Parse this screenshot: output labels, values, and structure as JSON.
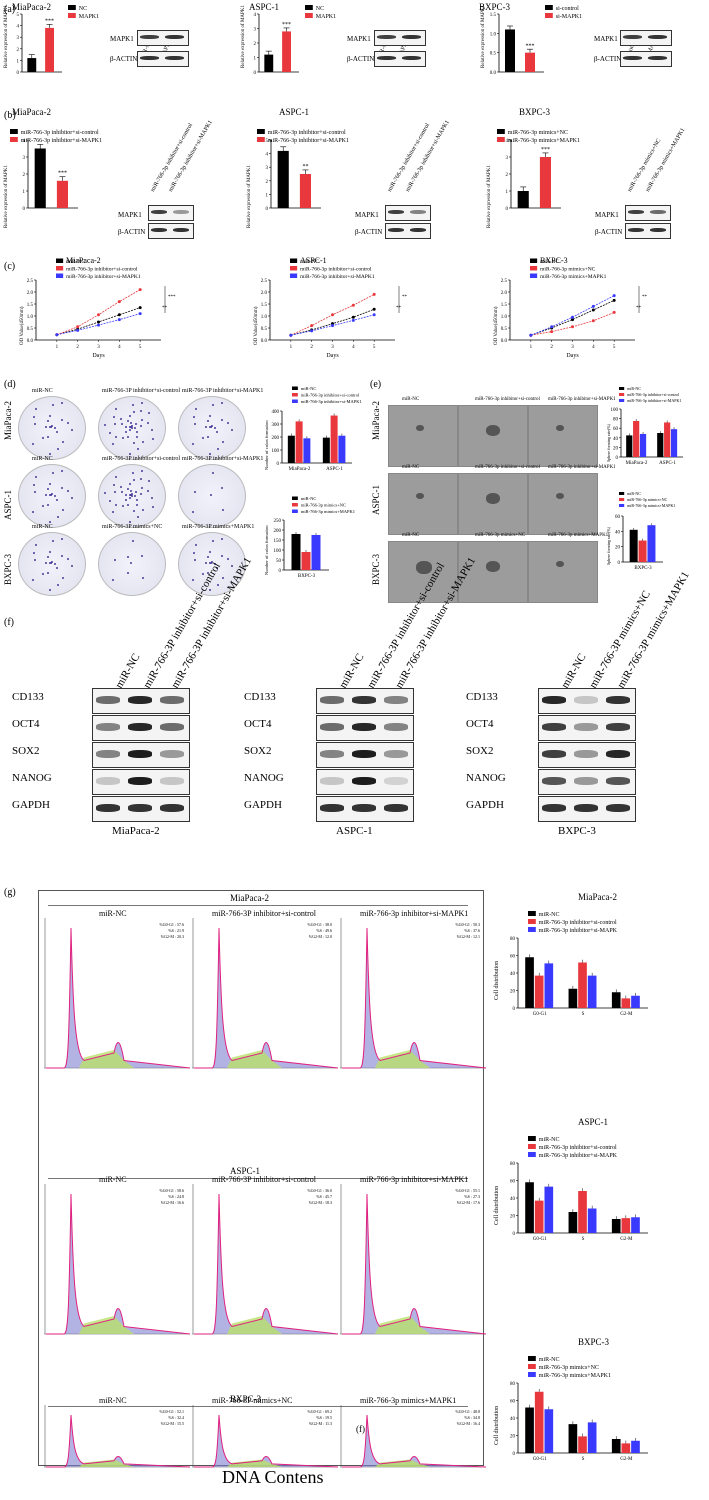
{
  "panel_labels": {
    "a": "(a)",
    "b": "(b)",
    "c": "(c)",
    "d": "(d)",
    "e": "(e)",
    "f": "(f)",
    "g": "(g)"
  },
  "common": {
    "ylabel_expr": "Relative expression of MAPK1",
    "mapk1": "MAPK1",
    "bactin": "β-ACTIN",
    "days": "Days",
    "od": "OD Value(450mm)",
    "colony_ylabel": "Number of colon formation",
    "sphere_ylabel": "Sphere forming rate(%)",
    "cell_dist": "Cell distribution",
    "dna": "DNA Contens",
    "stray_f": "(f)"
  },
  "row_a": [
    {
      "title": "MiaPaca-2",
      "legend": [
        "NC",
        "MAPK1"
      ],
      "lanes": [
        "miR-NC",
        "MAPK1"
      ],
      "chart_data": {
        "type": "bar",
        "categories": [
          "NC",
          "MAPK1"
        ],
        "values": [
          1.2,
          3.8
        ],
        "ylim": [
          0,
          5
        ],
        "ticks": [
          "0",
          "1",
          "2",
          "3",
          "4",
          "5"
        ],
        "sig": "***"
      }
    },
    {
      "title": "ASPC-1",
      "legend": [
        "NC",
        "MAPK1"
      ],
      "lanes": [
        "miR-NC",
        "MAPK1"
      ],
      "chart_data": {
        "type": "bar",
        "categories": [
          "NC",
          "MAPK1"
        ],
        "values": [
          1.2,
          2.8
        ],
        "ylim": [
          0,
          4
        ],
        "ticks": [
          "0",
          "1",
          "2",
          "3",
          "4"
        ],
        "sig": "***"
      }
    },
    {
      "title": "BXPC-3",
      "legend": [
        "si-control",
        "si-MAPK1"
      ],
      "lanes": [
        "si-control",
        "si-MAPK1"
      ],
      "chart_data": {
        "type": "bar",
        "categories": [
          "si-control",
          "si-MAPK1"
        ],
        "values": [
          1.1,
          0.5
        ],
        "ylim": [
          0,
          1.5
        ],
        "ticks": [
          "0.0",
          "0.5",
          "1.0",
          "1.5"
        ],
        "sig": "***"
      }
    }
  ],
  "row_b": [
    {
      "title": "MiaPaca-2",
      "legend": [
        "miR-766-3p inhibitor+si-control",
        "miR-766-3p inhibitor+si-MAPK1"
      ],
      "lanes": [
        "miR-766-3p inhibitor+si-control",
        "miR-766-3p inhibitor+si-MAPK1"
      ],
      "chart_data": {
        "type": "bar",
        "categories": [
          "si-control",
          "si-MAPK1"
        ],
        "values": [
          3.5,
          1.6
        ],
        "ylim": [
          0,
          4
        ],
        "ticks": [
          "0",
          "1",
          "2",
          "3",
          "4"
        ],
        "sig": "***"
      }
    },
    {
      "title": "ASPC-1",
      "legend": [
        "miR-766-3p inhibitor+si-control",
        "miR-766-3p inhibitor+si-MAPK1"
      ],
      "lanes": [
        "miR-766-3p inhibitor+si-control",
        "miR-766-3p inhibitor+si-MAPK1"
      ],
      "chart_data": {
        "type": "bar",
        "categories": [
          "si-control",
          "si-MAPK1"
        ],
        "values": [
          4.2,
          2.5
        ],
        "ylim": [
          0,
          5
        ],
        "ticks": [
          "0",
          "1",
          "2",
          "3",
          "4",
          "5"
        ],
        "sig": "**"
      }
    },
    {
      "title": "BXPC-3",
      "legend": [
        "miR-766-3p mimics+NC",
        "miR-766-3p mimics+MAPK1"
      ],
      "lanes": [
        "miR-766-3p mimics+NC",
        "miR-766-3p mimics+MAPK1"
      ],
      "chart_data": {
        "type": "bar",
        "categories": [
          "mimics+NC",
          "mimics+MAPK1"
        ],
        "values": [
          1.0,
          3.0
        ],
        "ylim": [
          0,
          4
        ],
        "ticks": [
          "0",
          "1",
          "2",
          "3",
          "4"
        ],
        "sig": "***"
      }
    }
  ],
  "row_c": [
    {
      "title": "MiaPaca-2",
      "legend": [
        "miR-NC",
        "miR-766-3p inhibitor+si-control",
        "miR-766-3p inhibitor+si-MAPK1"
      ],
      "chart_data": {
        "type": "line",
        "x": [
          1,
          2,
          3,
          4,
          5
        ],
        "ylim": [
          0,
          2.5
        ],
        "yticks": [
          "0.0",
          "0.5",
          "1.0",
          "1.5",
          "2.0",
          "2.5"
        ],
        "sig": [
          "**",
          "***"
        ],
        "series": [
          {
            "name": "miR-NC",
            "values": [
              0.22,
              0.45,
              0.75,
              1.05,
              1.35
            ]
          },
          {
            "name": "miR-766-3p inhibitor+si-control",
            "values": [
              0.22,
              0.55,
              1.05,
              1.6,
              2.1
            ]
          },
          {
            "name": "miR-766-3p inhibitor+si-MAPK1",
            "values": [
              0.22,
              0.4,
              0.62,
              0.85,
              1.1
            ]
          }
        ]
      }
    },
    {
      "title": "ASPC-1",
      "legend": [
        "miR-NC",
        "miR-766-3p inhibitor+si-control",
        "miR-766-3p inhibitor+si-MAPK1"
      ],
      "chart_data": {
        "type": "line",
        "x": [
          1,
          2,
          3,
          4,
          5
        ],
        "ylim": [
          0,
          2.5
        ],
        "yticks": [
          "0.0",
          "0.5",
          "1.0",
          "1.5",
          "2.0",
          "2.5"
        ],
        "sig": [
          "**",
          "**"
        ],
        "series": [
          {
            "name": "miR-NC",
            "values": [
              0.2,
              0.42,
              0.68,
              0.95,
              1.28
            ]
          },
          {
            "name": "miR-766-3p inhibitor+si-control",
            "values": [
              0.2,
              0.6,
              1.05,
              1.45,
              1.9
            ]
          },
          {
            "name": "miR-766-3p inhibitor+si-MAPK1",
            "values": [
              0.2,
              0.38,
              0.6,
              0.82,
              1.05
            ]
          }
        ]
      }
    },
    {
      "title": "BXPC-3",
      "legend": [
        "miR-NC",
        "miR-766-3p mimics+NC",
        "miR-766-3p mimics+MAPK1"
      ],
      "chart_data": {
        "type": "line",
        "x": [
          1,
          2,
          3,
          4,
          5
        ],
        "ylim": [
          0,
          2.5
        ],
        "yticks": [
          "0.0",
          "0.5",
          "1.0",
          "1.5",
          "2.0",
          "2.5"
        ],
        "sig": [
          "**",
          "**"
        ],
        "series": [
          {
            "name": "miR-NC",
            "values": [
              0.2,
              0.5,
              0.85,
              1.25,
              1.65
            ]
          },
          {
            "name": "miR-766-3p mimics+NC",
            "values": [
              0.2,
              0.35,
              0.55,
              0.8,
              1.15
            ]
          },
          {
            "name": "miR-766-3p mimics+MAPK1",
            "values": [
              0.2,
              0.55,
              0.95,
              1.4,
              1.85
            ]
          }
        ]
      }
    }
  ],
  "row_d": {
    "col_labels": [
      [
        "miR-NC",
        "miR-766-3P inhibitor+si-control",
        "miR-766-3P inhibitor+si-MAPK1"
      ],
      [
        "miR-NC",
        "miR-766-3P inhibitor+si-control",
        "miR-766-3P inhibitor+si-MAPK1"
      ],
      [
        "miR-NC",
        "miR-766-3P mimics+NC",
        "miR-766-3P mimics+MAPK1"
      ]
    ],
    "row_labels": [
      "MiaPaca-2",
      "ASPC-1",
      "BXPC-3"
    ],
    "chart1": {
      "legend": [
        "miR-NC",
        "miR-766-3p inhibitor+si-control",
        "miR-766-3p inhibitor+si-MAPK1"
      ],
      "chart_data": {
        "type": "bar",
        "categories": [
          "MiaPaca-2",
          "ASPC-1"
        ],
        "ylim": [
          0,
          400
        ],
        "yticks": [
          "0",
          "100",
          "200",
          "300",
          "400"
        ],
        "series": [
          {
            "name": "miR-NC",
            "values": [
              210,
              195
            ]
          },
          {
            "name": "miR-766-3p inhibitor+si-control",
            "values": [
              320,
              365
            ]
          },
          {
            "name": "miR-766-3p inhibitor+si-MAPK1",
            "values": [
              190,
              210
            ]
          }
        ]
      }
    },
    "chart2": {
      "legend": [
        "miR-NC",
        "miR-766-3p mimics+NC",
        "miR-766-3p mimics+MAPK1"
      ],
      "chart_data": {
        "type": "bar",
        "categories": [
          "BXPC-3"
        ],
        "ylim": [
          0,
          250
        ],
        "yticks": [
          "0",
          "50",
          "100",
          "150",
          "200",
          "250"
        ],
        "series": [
          {
            "name": "miR-NC",
            "values": [
              180
            ]
          },
          {
            "name": "miR-766-3p mimics+NC",
            "values": [
              90
            ]
          },
          {
            "name": "miR-766-3p mimics+MAPK1",
            "values": [
              175
            ]
          }
        ]
      }
    }
  },
  "row_e": {
    "col_labels": [
      [
        "miR-NC",
        "miR-766-3p inhibitor+si-control",
        "miR-766-3p inhibitor+si-MAPK1"
      ],
      [
        "miR-NC",
        "miR-766-3p inhibitor+si-control",
        "miR-766-3p inhibitor+si-MAPK1"
      ],
      [
        "miR-NC",
        "miR-766-3p mimics+NC",
        "miR-766-3p mimics+MAPK1"
      ]
    ],
    "row_labels": [
      "MiaPaca-2",
      "ASPC-1",
      "BXPC-3"
    ],
    "chart1": {
      "legend": [
        "miR-NC",
        "miR-766-3p inhibitor+si-control",
        "miR-766-3p inhibitor+si-MAPK1"
      ],
      "chart_data": {
        "type": "bar",
        "categories": [
          "MiaPaca-2",
          "ASPC-1"
        ],
        "ylim": [
          0,
          100
        ],
        "yticks": [
          "0",
          "20",
          "40",
          "60",
          "80",
          "100"
        ],
        "series": [
          {
            "name": "miR-NC",
            "values": [
              45,
              50
            ]
          },
          {
            "name": "miR-766-3p inhibitor+si-control",
            "values": [
              75,
              72
            ]
          },
          {
            "name": "miR-766-3p inhibitor+si-MAPK1",
            "values": [
              48,
              58
            ]
          }
        ]
      }
    },
    "chart2": {
      "legend": [
        "miR-NC",
        "miR-766-3p mimics+NC",
        "miR-766-3p mimics+MAPK1"
      ],
      "chart_data": {
        "type": "bar",
        "categories": [
          "BXPC-3"
        ],
        "ylim": [
          0,
          60
        ],
        "yticks": [
          "0",
          "20",
          "40",
          "60"
        ],
        "series": [
          {
            "name": "miR-NC",
            "values": [
              42
            ]
          },
          {
            "name": "miR-766-3p mimics+NC",
            "values": [
              28
            ]
          },
          {
            "name": "miR-766-3p mimics+MAPK1",
            "values": [
              48
            ]
          }
        ]
      }
    }
  },
  "row_f": {
    "proteins": [
      "CD133",
      "OCT4",
      "SOX2",
      "NANOG",
      "GAPDH"
    ],
    "groups": [
      {
        "cell": "MiaPaca-2",
        "lanes": [
          "miR-NC",
          "miR-766-3P inhibitor+si-control",
          "miR-766-3P inhibitor+si-MAPK1"
        ],
        "intensity": [
          [
            0.6,
            0.9,
            0.6
          ],
          [
            0.5,
            0.9,
            0.6
          ],
          [
            0.5,
            0.95,
            0.4
          ],
          [
            0.2,
            0.95,
            0.2
          ],
          [
            0.85,
            0.85,
            0.85
          ]
        ]
      },
      {
        "cell": "ASPC-1",
        "lanes": [
          "miR-NC",
          "miR-766-3P inhibitor+si-control",
          "miR-766-3P inhibitor+si-MAPK1"
        ],
        "intensity": [
          [
            0.6,
            0.85,
            0.5
          ],
          [
            0.6,
            0.9,
            0.5
          ],
          [
            0.5,
            0.95,
            0.4
          ],
          [
            0.2,
            0.95,
            0.15
          ],
          [
            0.85,
            0.85,
            0.85
          ]
        ]
      },
      {
        "cell": "BXPC-3",
        "lanes": [
          "miR-NC",
          "miR-766-3P mimics+NC",
          "miR-766-3P mimics+MAPK1"
        ],
        "intensity": [
          [
            0.9,
            0.2,
            0.85
          ],
          [
            0.8,
            0.4,
            0.8
          ],
          [
            0.8,
            0.4,
            0.9
          ],
          [
            0.7,
            0.4,
            0.7
          ],
          [
            0.85,
            0.85,
            0.85
          ]
        ]
      }
    ]
  },
  "row_g": {
    "groups": [
      {
        "cell": "MiaPaca-2",
        "panels": [
          {
            "label": "miR-NC",
            "stats": [
              "%G0-G1 : 57.6",
              "%S : 21.9",
              "%G2-M : 20.3"
            ]
          },
          {
            "label": "miR-766-3P inhibitor+si-control",
            "stats": [
              "%G0-G1 : 38.0",
              "%S : 49.6",
              "%G2-M : 12.0"
            ]
          },
          {
            "label": "miR-766-3p inhibitor+si-MAPK1",
            "stats": [
              "%G0-G1 : 50.3",
              "%S : 37.6",
              "%G2-M : 12.1"
            ]
          }
        ]
      },
      {
        "cell": "ASPC-1",
        "panels": [
          {
            "label": "miR-NC",
            "stats": [
              "%G0-G1 : 58.6",
              "%S : 24.8",
              "%G2-M : 16.6"
            ]
          },
          {
            "label": "miR-766-3P inhibitor+si-control",
            "stats": [
              "%G0-G1 : 36.0",
              "%S : 45.7",
              "%G2-M : 18.3"
            ]
          },
          {
            "label": "miR-766-3p inhibitor+si-MAPK1",
            "stats": [
              "%G0-G1 : 55.1",
              "%S : 27.3",
              "%G2-M : 17.6"
            ]
          }
        ]
      },
      {
        "cell": "BXPC-3",
        "panels": [
          {
            "label": "miR-NC",
            "stats": [
              "%G0-G1 : 52.1",
              "%S : 32.4",
              "%G2-M : 15.5"
            ]
          },
          {
            "label": "miR-766-3P mimics+NC",
            "stats": [
              "%G0-G1 : 69.2",
              "%S : 19.5",
              "%G2-M : 11.3"
            ]
          },
          {
            "label": "miR-766-3p mimics+MAPK1",
            "stats": [
              "%G0-G1 : 48.8",
              "%S : 34.8",
              "%G2-M : 16.4"
            ]
          }
        ]
      }
    ],
    "charts": [
      {
        "title": "MiaPaca-2",
        "legend": [
          "miR-NC",
          "miR-766-3p inhibitor+si-control",
          "miR-766-3p inhibitor+si-MAPK"
        ],
        "chart_data": {
          "type": "bar",
          "categories": [
            "G0-G1",
            "S",
            "G2-M"
          ],
          "ylim": [
            0,
            80
          ],
          "yticks": [
            "0",
            "20",
            "40",
            "60",
            "80"
          ],
          "series": [
            {
              "name": "miR-NC",
              "values": [
                58,
                22,
                18
              ]
            },
            {
              "name": "miR-766-3p inhibitor+si-control",
              "values": [
                37,
                52,
                11
              ]
            },
            {
              "name": "miR-766-3p inhibitor+si-MAPK",
              "values": [
                51,
                37,
                14
              ]
            }
          ]
        }
      },
      {
        "title": "ASPC-1",
        "legend": [
          "miR-NC",
          "miR-766-3p inhibitor+si-control",
          "miR-766-3p inhibitor+si-MAPK"
        ],
        "chart_data": {
          "type": "bar",
          "categories": [
            "G0-G1",
            "S",
            "G2-M"
          ],
          "ylim": [
            0,
            80
          ],
          "yticks": [
            "0",
            "20",
            "40",
            "60",
            "80"
          ],
          "series": [
            {
              "name": "miR-NC",
              "values": [
                58,
                24,
                16
              ]
            },
            {
              "name": "miR-766-3p inhibitor+si-control",
              "values": [
                37,
                48,
                17
              ]
            },
            {
              "name": "miR-766-3p inhibitor+si-MAPK",
              "values": [
                53,
                28,
                18
              ]
            }
          ]
        }
      },
      {
        "title": "BXPC-3",
        "legend": [
          "miR-NC",
          "miR-766-3p mimics+NC",
          "miR-766-3p  mimics+MAPK1"
        ],
        "chart_data": {
          "type": "bar",
          "categories": [
            "G0-G1",
            "S",
            "G2-M"
          ],
          "ylim": [
            0,
            80
          ],
          "yticks": [
            "0",
            "20",
            "40",
            "60",
            "80"
          ],
          "series": [
            {
              "name": "miR-NC",
              "values": [
                52,
                33,
                16
              ]
            },
            {
              "name": "miR-766-3p mimics+NC",
              "values": [
                70,
                19,
                11
              ]
            },
            {
              "name": "miR-766-3p  mimics+MAPK1",
              "values": [
                50,
                35,
                14
              ]
            }
          ]
        }
      }
    ]
  },
  "colors": {
    "black": "#000000",
    "red": "#e8383d",
    "blue": "#3a3aff",
    "pink": "#e02080",
    "purple": "#8080d0",
    "green": "#b8e06a"
  }
}
